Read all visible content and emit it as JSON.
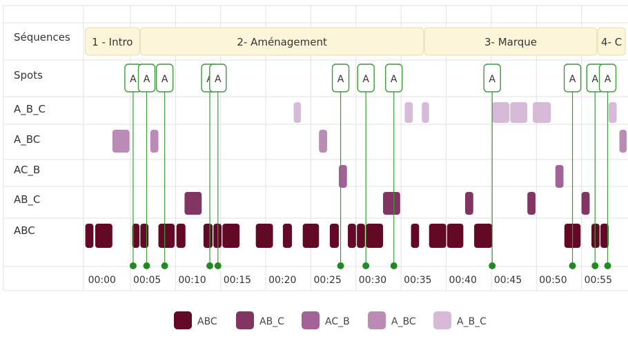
{
  "chart_data": {
    "type": "timeline",
    "rows": [
      "Séquences",
      "Spots",
      "A_B_C",
      "A_BC",
      "AC_B",
      "AB_C",
      "ABC"
    ],
    "x_ticks": [
      "00:00",
      "00:05",
      "00:10",
      "00:15",
      "00:20",
      "00:25",
      "00:30",
      "00:35",
      "00:40",
      "00:45",
      "00:50",
      "00:55"
    ],
    "x_unit": "minutes",
    "x_range": [
      -0.2,
      60.0
    ],
    "sequences": [
      {
        "label": "1 - Intro",
        "start": 0.0,
        "end": 6.0
      },
      {
        "label": "2- Aménagement",
        "start": 6.1,
        "end": 37.5
      },
      {
        "label": "3- Marque",
        "start": 37.6,
        "end": 56.7
      },
      {
        "label": "4- C",
        "start": 56.8,
        "end": 60.0
      }
    ],
    "spots": {
      "label": "A",
      "times": [
        5.3,
        6.8,
        8.8,
        13.8,
        14.7,
        28.3,
        31.1,
        34.2,
        45.1,
        54.0,
        56.5,
        57.9
      ]
    },
    "series": [
      {
        "name": "A_B_C",
        "color": "#d7b9d8",
        "segments": [
          [
            23.1,
            23.9
          ],
          [
            35.4,
            36.3
          ],
          [
            37.3,
            38.1
          ],
          [
            45.1,
            47.0
          ],
          [
            47.1,
            49.0
          ],
          [
            49.6,
            51.6
          ],
          [
            58.0,
            58.9
          ]
        ]
      },
      {
        "name": "A_BC",
        "color": "#b98bb5",
        "segments": [
          [
            3.0,
            4.9
          ],
          [
            7.2,
            8.1
          ],
          [
            25.9,
            26.8
          ],
          [
            59.2,
            60.0
          ]
        ]
      },
      {
        "name": "AC_B",
        "color": "#a36399",
        "segments": [
          [
            28.1,
            29.0
          ],
          [
            52.1,
            53.0
          ]
        ]
      },
      {
        "name": "AB_C",
        "color": "#823462",
        "segments": [
          [
            11.0,
            12.9
          ],
          [
            33.0,
            34.9
          ],
          [
            42.1,
            43.0
          ],
          [
            49.0,
            49.9
          ],
          [
            55.0,
            55.9
          ]
        ]
      },
      {
        "name": "ABC",
        "color": "#620a25",
        "segments": [
          [
            0.0,
            0.9
          ],
          [
            1.1,
            3.0
          ],
          [
            5.2,
            6.0
          ],
          [
            6.1,
            7.0
          ],
          [
            8.1,
            9.9
          ],
          [
            10.1,
            11.1
          ],
          [
            13.1,
            14.1
          ],
          [
            14.2,
            15.1
          ],
          [
            15.2,
            17.1
          ],
          [
            18.9,
            20.8
          ],
          [
            21.9,
            22.9
          ],
          [
            24.1,
            25.9
          ],
          [
            27.1,
            28.1
          ],
          [
            29.1,
            30.0
          ],
          [
            30.1,
            31.0
          ],
          [
            31.1,
            33.0
          ],
          [
            36.1,
            37.0
          ],
          [
            38.1,
            40.0
          ],
          [
            40.1,
            41.9
          ],
          [
            43.1,
            45.1
          ],
          [
            53.1,
            54.9
          ],
          [
            56.1,
            57.0
          ],
          [
            57.1,
            58.0
          ]
        ]
      }
    ],
    "legend": [
      "ABC",
      "AB_C",
      "AC_B",
      "A_BC",
      "A_B_C"
    ]
  },
  "colors": {
    "grid": "#e2e2e2",
    "sequence_fill": "#fdf5da",
    "sequence_stroke": "#e8dcb0",
    "spot_line": "#3a9a3a",
    "spot_dot": "#1f8a1f"
  }
}
